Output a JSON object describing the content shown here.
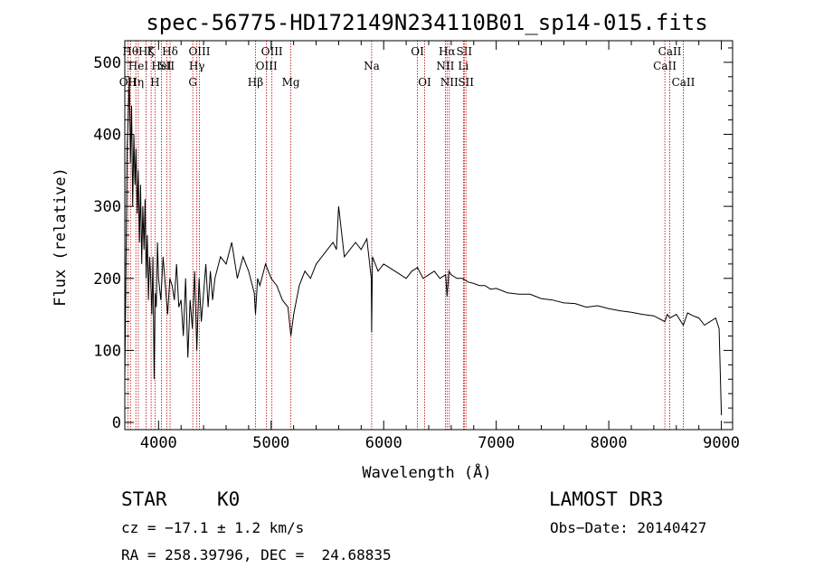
{
  "chart_data": {
    "type": "line",
    "title": "spec-56775-HD172149N234110B01_sp14-015.fits",
    "xlabel": "Wavelength (Å)",
    "ylabel": "Flux (relative)",
    "xlim": [
      3700,
      9100
    ],
    "ylim": [
      -10,
      530
    ],
    "x_ticks": [
      4000,
      5000,
      6000,
      7000,
      8000,
      9000
    ],
    "y_ticks": [
      0,
      100,
      200,
      300,
      400,
      500
    ],
    "grid": false,
    "line_color": "#000000",
    "marker_color": "#b00000",
    "series": [
      {
        "x": [
          3700,
          3710,
          3720,
          3730,
          3740,
          3750,
          3760,
          3770,
          3780,
          3790,
          3800,
          3810,
          3820,
          3830,
          3840,
          3850,
          3860,
          3870,
          3880,
          3890,
          3900,
          3910,
          3920,
          3930,
          3940,
          3950,
          3960,
          3970,
          3980,
          3990,
          4000,
          4020,
          4040,
          4060,
          4080,
          4100,
          4120,
          4140,
          4160,
          4180,
          4200,
          4220,
          4240,
          4260,
          4280,
          4300,
          4320,
          4340,
          4360,
          4380,
          4400,
          4420,
          4440,
          4460,
          4480,
          4500,
          4550,
          4600,
          4650,
          4700,
          4750,
          4800,
          4850,
          4861,
          4880,
          4900,
          4950,
          5000,
          5050,
          5100,
          5150,
          5175,
          5200,
          5250,
          5300,
          5350,
          5400,
          5450,
          5500,
          5550,
          5580,
          5600,
          5650,
          5700,
          5750,
          5800,
          5850,
          5890,
          5893,
          5900,
          5950,
          6000,
          6050,
          6100,
          6150,
          6200,
          6250,
          6300,
          6350,
          6400,
          6450,
          6500,
          6550,
          6563,
          6580,
          6600,
          6650,
          6700,
          6750,
          6800,
          6850,
          6900,
          6950,
          7000,
          7100,
          7200,
          7300,
          7400,
          7500,
          7600,
          7700,
          7800,
          7900,
          8000,
          8100,
          8200,
          8300,
          8400,
          8498,
          8520,
          8542,
          8600,
          8662,
          8700,
          8750,
          8800,
          8850,
          8900,
          8950,
          8980,
          9000
        ],
        "y": [
          60,
          200,
          380,
          420,
          480,
          360,
          440,
          300,
          400,
          330,
          380,
          290,
          350,
          250,
          330,
          220,
          300,
          240,
          310,
          200,
          260,
          170,
          230,
          200,
          150,
          230,
          60,
          180,
          160,
          250,
          200,
          170,
          230,
          190,
          150,
          200,
          190,
          170,
          220,
          160,
          170,
          120,
          200,
          90,
          170,
          130,
          210,
          100,
          200,
          140,
          180,
          220,
          160,
          210,
          170,
          200,
          230,
          220,
          250,
          200,
          230,
          210,
          180,
          150,
          200,
          190,
          220,
          200,
          190,
          170,
          160,
          120,
          150,
          190,
          210,
          200,
          220,
          230,
          240,
          250,
          240,
          300,
          230,
          240,
          250,
          240,
          255,
          200,
          125,
          230,
          210,
          220,
          215,
          210,
          205,
          200,
          210,
          215,
          200,
          205,
          210,
          200,
          205,
          175,
          210,
          205,
          200,
          200,
          195,
          193,
          190,
          190,
          185,
          186,
          180,
          178,
          178,
          172,
          170,
          166,
          165,
          160,
          162,
          158,
          155,
          153,
          150,
          148,
          140,
          150,
          145,
          150,
          135,
          152,
          148,
          145,
          135,
          140,
          145,
          130,
          10
        ]
      }
    ],
    "line_markers": [
      {
        "x": 3727,
        "label": "OII",
        "row": 3
      },
      {
        "x": 3750,
        "label": "Hθ",
        "row": 1
      },
      {
        "x": 3798,
        "label": "Hη",
        "row": 3
      },
      {
        "x": 3820,
        "label": "HeI",
        "row": 2
      },
      {
        "x": 3889,
        "label": "Hζ",
        "row": 1
      },
      {
        "x": 3934,
        "label": "K",
        "row": 1
      },
      {
        "x": 3968,
        "label": "H",
        "row": 3
      },
      {
        "x": 4026,
        "label": "HeI",
        "row": 2
      },
      {
        "x": 4072,
        "label": "SII",
        "row": 2
      },
      {
        "x": 4102,
        "label": "Hδ",
        "row": 1
      },
      {
        "x": 4304,
        "label": "G",
        "row": 3
      },
      {
        "x": 4340,
        "label": "Hγ",
        "row": 2
      },
      {
        "x": 4363,
        "label": "OIII",
        "row": 1
      },
      {
        "x": 4861,
        "label": "Hβ",
        "row": 3
      },
      {
        "x": 4959,
        "label": "OIII",
        "row": 2
      },
      {
        "x": 5007,
        "label": "OIII",
        "row": 1
      },
      {
        "x": 5175,
        "label": "Mg",
        "row": 3
      },
      {
        "x": 5893,
        "label": "Na",
        "row": 2
      },
      {
        "x": 6300,
        "label": "OI",
        "row": 1
      },
      {
        "x": 6364,
        "label": "OI",
        "row": 3
      },
      {
        "x": 6548,
        "label": "NII",
        "row": 2
      },
      {
        "x": 6563,
        "label": "Hα",
        "row": 1
      },
      {
        "x": 6583,
        "label": "NII",
        "row": 3
      },
      {
        "x": 6708,
        "label": "Li",
        "row": 2
      },
      {
        "x": 6716,
        "label": "SII",
        "row": 1
      },
      {
        "x": 6731,
        "label": "SII",
        "row": 3
      },
      {
        "x": 8498,
        "label": "CaII",
        "row": 2
      },
      {
        "x": 8542,
        "label": "CaII",
        "row": 1
      },
      {
        "x": 8662,
        "label": "CaII",
        "row": 3
      }
    ]
  },
  "info": {
    "object_class": "STAR",
    "subclass": "K0",
    "survey": "LAMOST DR3",
    "cz": "cz = −17.1 ± 1.2 km/s",
    "obs_date": "Obs−Date: 20140427",
    "coords": "RA = 258.39796, DEC =  24.68835"
  }
}
